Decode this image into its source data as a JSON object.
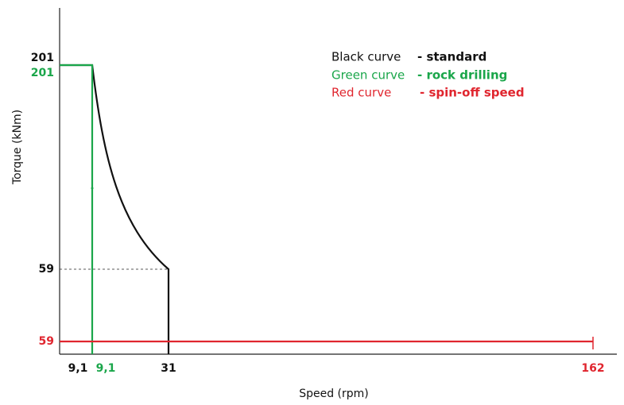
{
  "y_axis": {
    "label": "Torque (kNm)",
    "ticks": [
      "201",
      "201",
      "59",
      "59"
    ]
  },
  "x_axis": {
    "label": "Speed (rpm)",
    "ticks": [
      "9,1",
      "9,1",
      "31",
      "162"
    ]
  },
  "legend": [
    {
      "name": "Black curve",
      "description": "- standard"
    },
    {
      "name": "Green curve",
      "description": "- rock drilling"
    },
    {
      "name": "Red curve",
      "description": "- spin-off speed"
    }
  ]
}
